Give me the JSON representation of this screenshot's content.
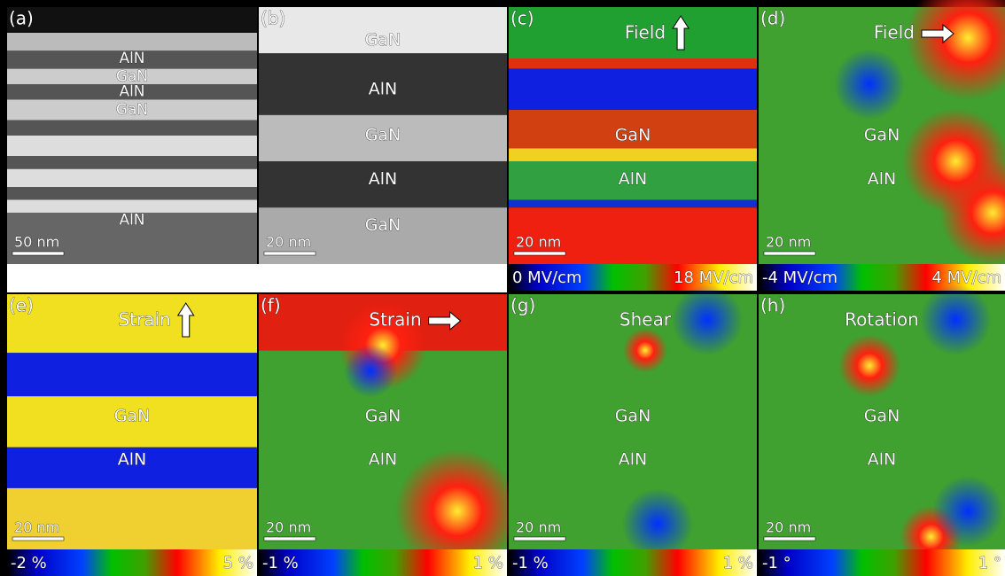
{
  "panels": [
    {
      "label": "(a)",
      "layers": [
        "AlN",
        "GaN",
        "AlN",
        "GaN",
        "AlN"
      ],
      "scale_bar": "50 nm"
    },
    {
      "label": "(b)",
      "layers": [
        "GaN",
        "AlN",
        "GaN",
        "AlN",
        "GaN"
      ],
      "scale_bar": "20 nm"
    },
    {
      "label": "(c)",
      "title": "Field",
      "layers": [
        "GaN",
        "AlN"
      ],
      "scale_bar": "20 nm",
      "colorbar": [
        "0 MV/cm",
        "18 MV/cm"
      ]
    },
    {
      "label": "(d)",
      "title": "Field",
      "layers": [
        "GaN",
        "AlN"
      ],
      "scale_bar": "20 nm",
      "colorbar": [
        "-4 MV/cm",
        "4 MV/cm"
      ]
    },
    {
      "label": "(e)",
      "title": "Strain",
      "layers": [
        "GaN",
        "AlN"
      ],
      "scale_bar": "20 nm",
      "colorbar": [
        "-2 %",
        "5 %"
      ]
    },
    {
      "label": "(f)",
      "title": "Strain",
      "layers": [
        "GaN",
        "AlN"
      ],
      "scale_bar": "20 nm",
      "colorbar": [
        "-1 %",
        "1 %"
      ]
    },
    {
      "label": "(g)",
      "title": "Shear",
      "layers": [
        "GaN",
        "AlN"
      ],
      "scale_bar": "20 nm",
      "colorbar": [
        "-1 %",
        "1 %"
      ]
    },
    {
      "label": "(h)",
      "title": "Rotation",
      "layers": [
        "GaN",
        "AlN"
      ],
      "scale_bar": "20 nm",
      "colorbar": [
        "-1 °",
        "1 °"
      ]
    }
  ]
}
